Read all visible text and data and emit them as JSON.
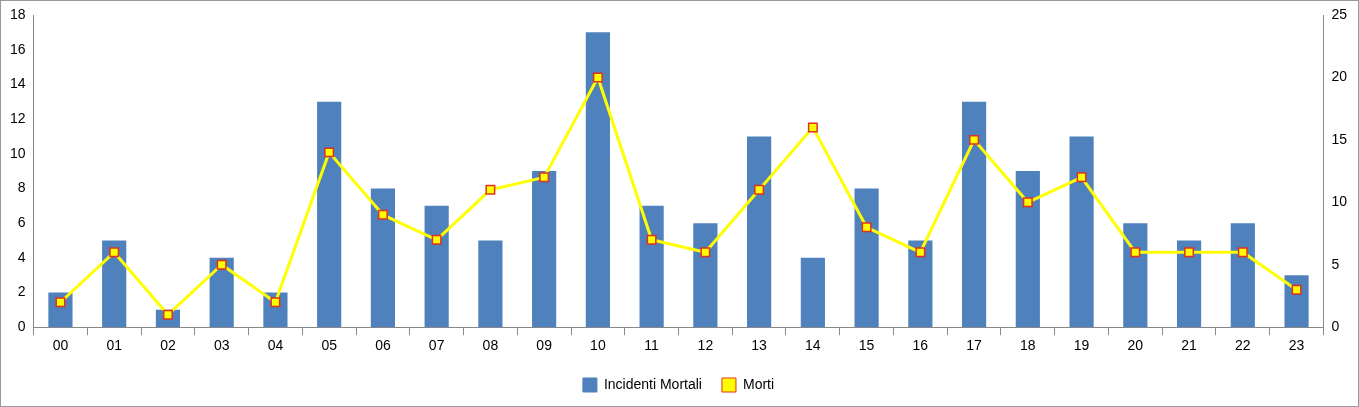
{
  "chart_data": {
    "type": "bar",
    "categories": [
      "00",
      "01",
      "02",
      "03",
      "04",
      "05",
      "06",
      "07",
      "08",
      "09",
      "10",
      "11",
      "12",
      "13",
      "14",
      "15",
      "16",
      "17",
      "18",
      "19",
      "20",
      "21",
      "22",
      "23"
    ],
    "series": [
      {
        "name": "Incidenti Mortali",
        "color": "#4f81bd",
        "values": [
          2,
          5,
          1,
          4,
          2,
          13,
          8,
          7,
          5,
          9,
          17,
          7,
          6,
          11,
          4,
          8,
          5,
          13,
          9,
          11,
          6,
          5,
          6,
          3
        ]
      },
      {
        "name": "Morti",
        "type": "line",
        "axis": "y2",
        "color": "#ffff00",
        "marker": "square",
        "values": [
          2,
          6,
          1,
          5,
          2,
          14,
          9,
          7,
          11,
          12,
          20,
          7,
          6,
          11,
          16,
          8,
          6,
          15,
          10,
          12,
          6,
          6,
          6,
          3
        ]
      }
    ],
    "ylim": [
      0,
      18
    ],
    "yticks": [
      0,
      2,
      4,
      6,
      8,
      10,
      12,
      14,
      16,
      18
    ],
    "y2lim": [
      0,
      25
    ],
    "y2ticks": [
      0,
      5,
      10,
      15,
      20,
      25
    ],
    "grid": false,
    "legend": "bottom"
  }
}
